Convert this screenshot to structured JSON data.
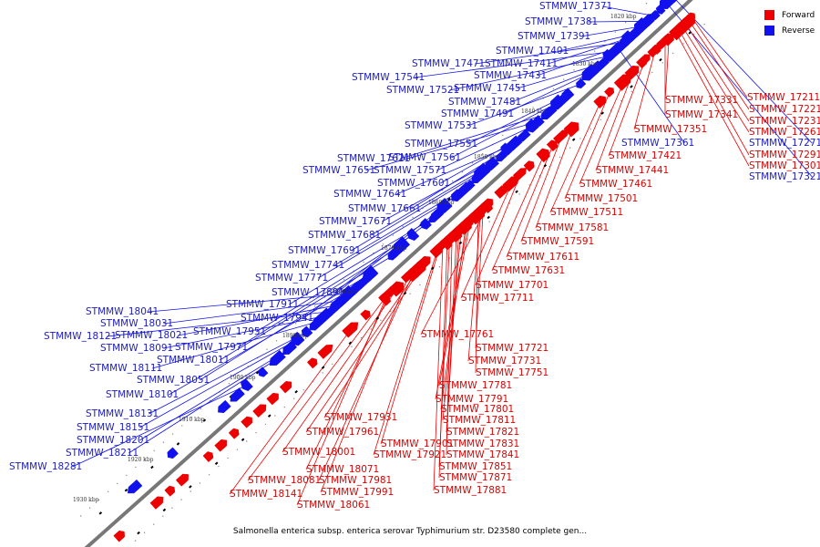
{
  "caption": "Salmonella enterica subsp. enterica serovar Typhimurium str. D23580 complete gen...",
  "legend": [
    {
      "label": "Forward",
      "color": "#ee0000"
    },
    {
      "label": "Reverse",
      "color": "#1111ee"
    }
  ],
  "colors": {
    "forward": "#ee0000",
    "reverse": "#1111ee",
    "backbone": "#777777"
  },
  "ticks": [
    "1820 kbp",
    "1830 kbp",
    "1840 kbp",
    "1850 kbp",
    "1860 kbp",
    "1870 kbp",
    "1880 kbp",
    "1890 kbp",
    "1900 kbp",
    "1910 kbp",
    "1920 kbp",
    "1930 kbp"
  ],
  "reverse_genes": [
    "STMMW_17371",
    "STMMW_17381",
    "STMMW_17391",
    "STMMW_17401",
    "STMMW_17471",
    "STMMW_17411",
    "STMMW_17431",
    "STMMW_17541",
    "STMMW_17521",
    "STMMW_17451",
    "STMMW_17481",
    "STMMW_17491",
    "STMMW_17531",
    "STMMW_17551",
    "STMMW_17561",
    "STMMW_17621",
    "STMMW_17651",
    "STMMW_17571",
    "STMMW_17601",
    "STMMW_17641",
    "STMMW_17661",
    "STMMW_17671",
    "STMMW_17681",
    "STMMW_17691",
    "STMMW_17741",
    "STMMW_17771",
    "STMMW_17891",
    "STMMW_17911",
    "STMMW_17941",
    "STMMW_18041",
    "STMMW_18031",
    "STMMW_18021",
    "STMMW_17951",
    "STMMW_18121",
    "STMMW_18091",
    "STMMW_17971",
    "STMMW_18011",
    "STMMW_18111",
    "STMMW_18051",
    "STMMW_18101",
    "STMMW_18131",
    "STMMW_18151",
    "STMMW_18201",
    "STMMW_18211",
    "STMMW_18281",
    "STMMW_17361",
    "STMMW_17271",
    "STMMW_17321"
  ],
  "forward_genes": [
    "STMMW_17211",
    "STMMW_17331",
    "STMMW_17221",
    "STMMW_17341",
    "STMMW_17231",
    "STMMW_17261",
    "STMMW_17351",
    "STMMW_17291",
    "STMMW_17301",
    "STMMW_17421",
    "STMMW_17441",
    "STMMW_17461",
    "STMMW_17501",
    "STMMW_17511",
    "STMMW_17581",
    "STMMW_17591",
    "STMMW_17611",
    "STMMW_17631",
    "STMMW_17701",
    "STMMW_17711",
    "STMMW_17761",
    "STMMW_17721",
    "STMMW_17731",
    "STMMW_17751",
    "STMMW_17781",
    "STMMW_17791",
    "STMMW_17801",
    "STMMW_17811",
    "STMMW_17821",
    "STMMW_17831",
    "STMMW_17841",
    "STMMW_17851",
    "STMMW_17871",
    "STMMW_17881",
    "STMMW_17931",
    "STMMW_17961",
    "STMMW_17901",
    "STMMW_17921",
    "STMMW_18001",
    "STMMW_18071",
    "STMMW_18081",
    "STMMW_17981",
    "STMMW_17991",
    "STMMW_18141",
    "STMMW_18061"
  ]
}
